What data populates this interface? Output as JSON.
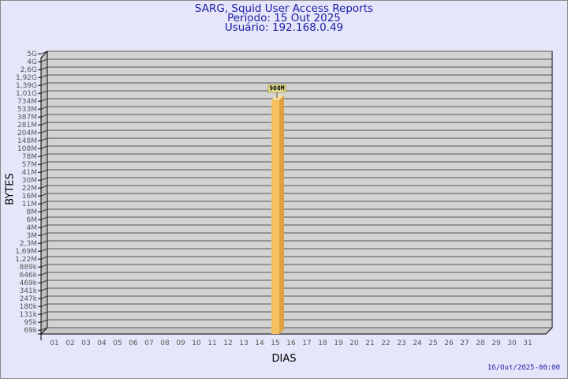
{
  "chart_data": {
    "type": "bar",
    "title": "SARG, Squid User Access Reports",
    "subtitle": [
      "Período: 15 Out 2025",
      "Usuário: 192.168.0.49"
    ],
    "xlabel": "DIAS",
    "ylabel": "BYTES",
    "yscale": "log",
    "grid": true,
    "categories": [
      "01",
      "02",
      "03",
      "04",
      "05",
      "06",
      "07",
      "08",
      "09",
      "10",
      "11",
      "12",
      "13",
      "14",
      "15",
      "16",
      "17",
      "18",
      "19",
      "20",
      "21",
      "22",
      "23",
      "24",
      "25",
      "26",
      "27",
      "28",
      "29",
      "30",
      "31"
    ],
    "values": {
      "15": 900000000
    },
    "data_labels": {
      "15": "900M"
    },
    "yticks": [
      "5G",
      "4G",
      "2,6G",
      "1,92G",
      "1,39G",
      "1,01G",
      "734M",
      "533M",
      "387M",
      "281M",
      "204M",
      "148M",
      "108M",
      "78M",
      "57M",
      "41M",
      "30M",
      "22M",
      "16M",
      "11M",
      "8M",
      "6M",
      "4M",
      "3M",
      "2,3M",
      "1,69M",
      "1,22M",
      "889k",
      "646k",
      "469k",
      "341k",
      "247k",
      "180k",
      "131k",
      "95k",
      "69k"
    ],
    "bar_color": "#f5c060",
    "plot_background": "#d3d3d3"
  },
  "footer": {
    "timestamp": "16/Out/2025-00:00"
  }
}
